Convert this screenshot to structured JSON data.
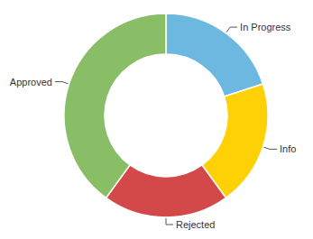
{
  "chart_data": {
    "type": "donut",
    "categories": [
      "In Progress",
      "Info",
      "Rejected",
      "Approved"
    ],
    "values": [
      20,
      20,
      20,
      40
    ],
    "colors": [
      "#6db8e1",
      "#fdd106",
      "#d34848",
      "#89be67"
    ]
  }
}
